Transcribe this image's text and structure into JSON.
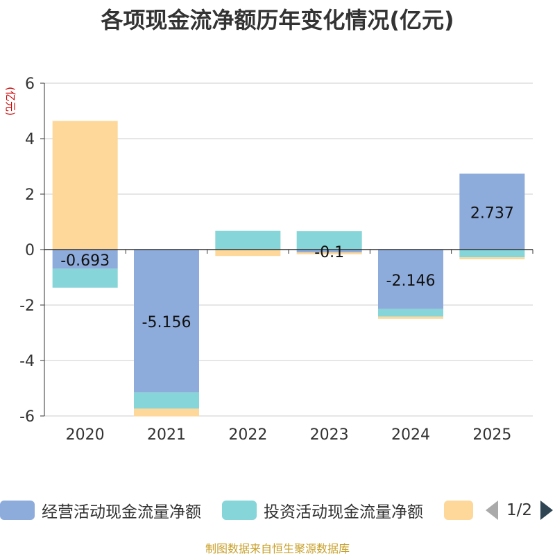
{
  "chart_data": {
    "type": "bar",
    "stacked": true,
    "title": "各项现金流净额历年变化情况(亿元)",
    "ylabel": "(亿元)",
    "categories": [
      "2020",
      "2021",
      "2022",
      "2023",
      "2024",
      "2025"
    ],
    "ylim": [
      -6,
      6
    ],
    "yticks": [
      6,
      4,
      2,
      0,
      -2,
      -4,
      -6
    ],
    "grid": true,
    "series": [
      {
        "name": "经营活动现金流量净额",
        "color": "#8eacdb",
        "values": [
          -0.693,
          -5.156,
          0.0,
          -0.1,
          -2.146,
          2.737
        ],
        "labels": [
          "-0.693",
          "-5.156",
          "",
          "-0.1",
          "-2.146",
          "2.737"
        ]
      },
      {
        "name": "投资活动现金流量净额",
        "color": "#86d5d8",
        "values": [
          -0.68,
          -0.58,
          0.68,
          0.67,
          -0.27,
          -0.28
        ]
      },
      {
        "name": "",
        "color": "#fdd89a",
        "values": [
          4.64,
          -0.28,
          -0.23,
          -0.07,
          -0.08,
          -0.07
        ]
      }
    ],
    "legend_position": "bottom"
  },
  "pager": {
    "text": "1/2"
  },
  "footer": {
    "text": "制图数据来自恒生聚源数据库"
  }
}
